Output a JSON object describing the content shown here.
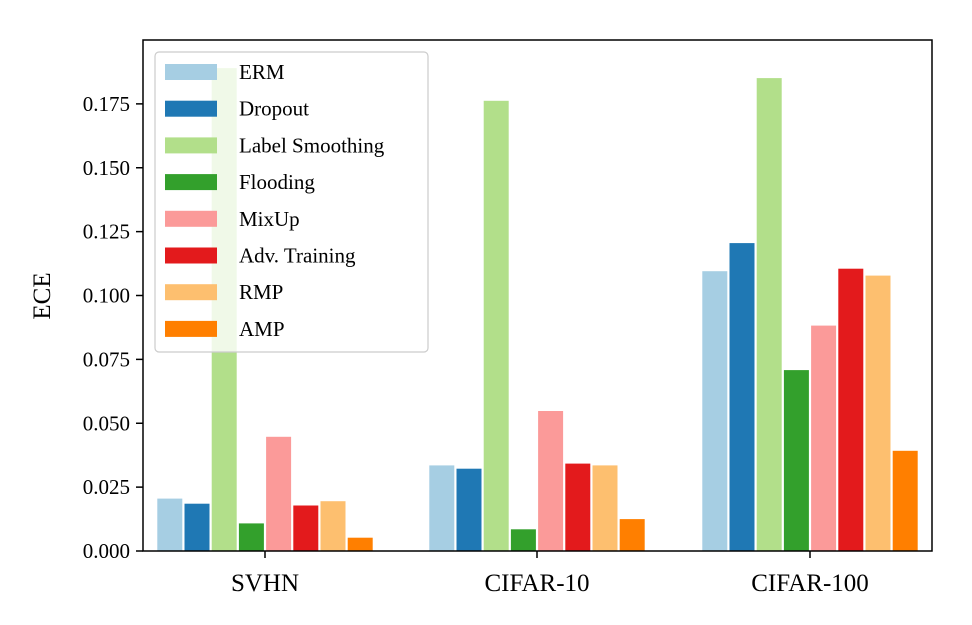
{
  "chart_data": {
    "type": "bar",
    "title": "",
    "xlabel": "",
    "ylabel": "ECE",
    "categories": [
      "SVHN",
      "CIFAR-10",
      "CIFAR-100"
    ],
    "ylim": [
      0,
      0.2
    ],
    "yticks": [
      "0.000",
      "0.025",
      "0.050",
      "0.075",
      "0.100",
      "0.125",
      "0.150",
      "0.175"
    ],
    "grid": false,
    "legend_position": "top-left",
    "series": [
      {
        "name": "ERM",
        "color": "#a6cee3",
        "values": [
          0.0205,
          0.0335,
          0.1095
        ]
      },
      {
        "name": "Dropout",
        "color": "#1f78b4",
        "values": [
          0.0185,
          0.0322,
          0.1205
        ]
      },
      {
        "name": "Label Smoothing",
        "color": "#b2df8a",
        "values": [
          0.189,
          0.1762,
          0.1851
        ]
      },
      {
        "name": "Flooding",
        "color": "#33a02c",
        "values": [
          0.0108,
          0.0085,
          0.0708
        ]
      },
      {
        "name": "MixUp",
        "color": "#fb9a99",
        "values": [
          0.0447,
          0.0548,
          0.0882
        ]
      },
      {
        "name": "Adv. Training",
        "color": "#e31a1c",
        "values": [
          0.0178,
          0.0342,
          0.1105
        ]
      },
      {
        "name": "RMP",
        "color": "#fdbf6f",
        "values": [
          0.0195,
          0.0335,
          0.1078
        ]
      },
      {
        "name": "AMP",
        "color": "#ff7f00",
        "values": [
          0.0052,
          0.0125,
          0.0392
        ]
      }
    ]
  }
}
